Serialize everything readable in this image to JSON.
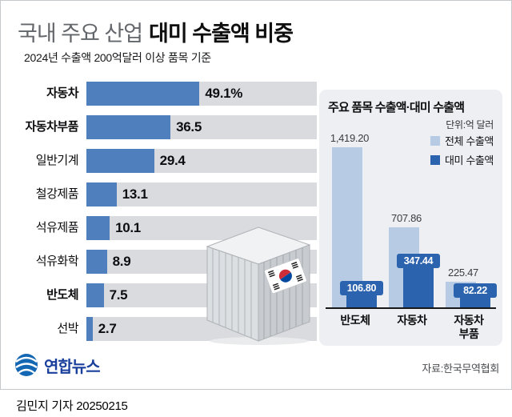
{
  "header": {
    "title_light": "국내 주요 산업",
    "title_bold": "대미 수출액 비중",
    "subtitle": "2024년 수출액 200억달러 이상 품목 기준"
  },
  "chart_data": [
    {
      "type": "bar",
      "orientation": "horizontal",
      "title": "국내 주요 산업 대미 수출액 비중",
      "unit": "%",
      "categories": [
        "자동차",
        "자동차부품",
        "일반기계",
        "철강제품",
        "석유제품",
        "석유화학",
        "반도체",
        "선박"
      ],
      "values": [
        49.1,
        36.5,
        29.4,
        13.1,
        10.1,
        8.9,
        7.5,
        2.7
      ],
      "value_labels": [
        "49.1%",
        "36.5",
        "29.4",
        "13.1",
        "10.1",
        "8.9",
        "7.5",
        "2.7"
      ],
      "bold_flags": [
        true,
        true,
        false,
        false,
        false,
        false,
        true,
        false
      ],
      "xlim": [
        0,
        100
      ],
      "bar_color": "#4f80bd",
      "track_color": "#d9dbde",
      "grid": false
    },
    {
      "type": "bar",
      "orientation": "vertical",
      "title": "주요 품목 수출액·대미 수출액",
      "unit_label": "단위:억 달러",
      "categories": [
        "반도체",
        "자동차",
        "자동차\n부품"
      ],
      "series": [
        {
          "name": "전체 수출액",
          "color": "#b7cbe5",
          "values": [
            1419.2,
            707.86,
            225.47
          ],
          "labels": [
            "1,419.20",
            "707.86",
            "225.47"
          ]
        },
        {
          "name": "대미 수출액",
          "color": "#2c63ae",
          "values": [
            106.8,
            347.44,
            82.22
          ],
          "labels": [
            "106.80",
            "347.44",
            "82.22"
          ]
        }
      ],
      "ylim": [
        0,
        1420
      ],
      "legend_position": "top-right",
      "panel_bg": "#edeff2",
      "grid": false
    }
  ],
  "illustration": {
    "name": "shipping-container-with-korean-flag"
  },
  "footer": {
    "logo_text": "연합뉴스",
    "source": "자료:한국무역협회",
    "byline": "김민지 기자 20250215"
  }
}
